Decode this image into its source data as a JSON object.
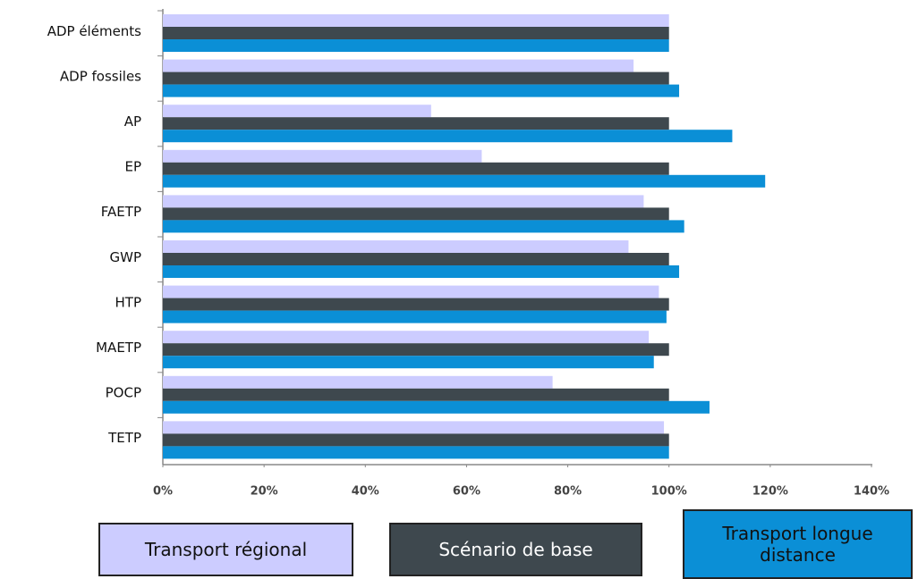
{
  "chart_data": {
    "type": "bar",
    "orientation": "horizontal",
    "categories": [
      "ADP éléments",
      "ADP fossiles",
      "AP",
      "EP",
      "FAETP",
      "GWP",
      "HTP",
      "MAETP",
      "POCP",
      "TETP"
    ],
    "series": [
      {
        "name": "Transport régional",
        "color": "#ccccff",
        "values": [
          100,
          93,
          53,
          63,
          95,
          92,
          98,
          96,
          77,
          99
        ]
      },
      {
        "name": "Scénario de base",
        "color": "#3e484e",
        "values": [
          100,
          100,
          100,
          100,
          100,
          100,
          100,
          100,
          100,
          100
        ]
      },
      {
        "name": "Transport longue distance",
        "color": "#0b8fd6",
        "values": [
          100,
          102,
          112.5,
          119,
          103,
          102,
          99.5,
          97,
          108,
          100
        ]
      }
    ],
    "xlim": [
      0,
      140
    ],
    "xticks": [
      {
        "value": 0,
        "label": "0%"
      },
      {
        "value": 20,
        "label": "20%"
      },
      {
        "value": 40,
        "label": "40%"
      },
      {
        "value": 60,
        "label": "60%"
      },
      {
        "value": 80,
        "label": "80%"
      },
      {
        "value": 100,
        "label": "100%"
      },
      {
        "value": 120,
        "label": "120%"
      },
      {
        "value": 140,
        "label": "140%"
      }
    ],
    "grid": false
  }
}
